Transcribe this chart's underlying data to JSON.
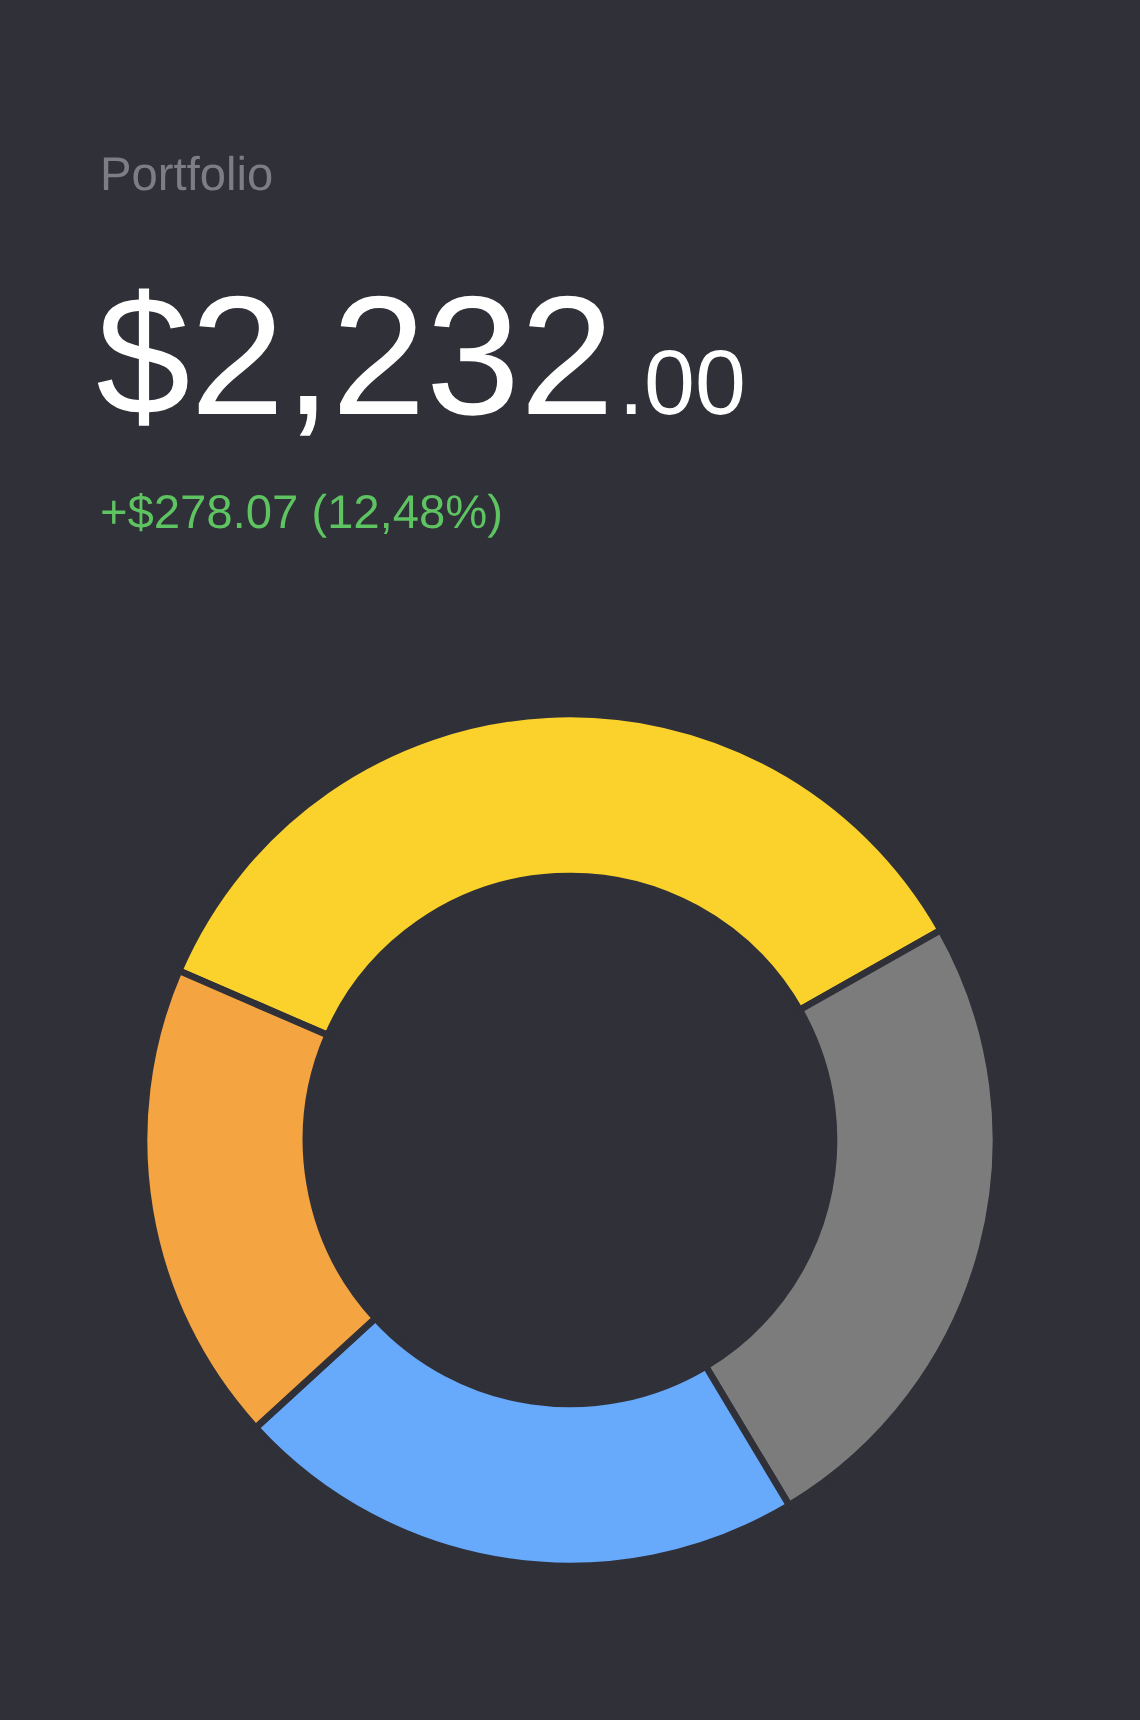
{
  "chart_data": {
    "type": "donut",
    "title": "Portfolio",
    "subtitle": "$2,232.00",
    "annotations": [
      "+$278.07 (12,48%)"
    ],
    "categories": [
      null,
      null,
      null,
      null
    ],
    "values": [
      35.3,
      24.6,
      21.8,
      18.3
    ],
    "colors": [
      "#fbd12c",
      "#7c7c7c",
      "#67a9fb",
      "#f5a442"
    ]
  }
}
